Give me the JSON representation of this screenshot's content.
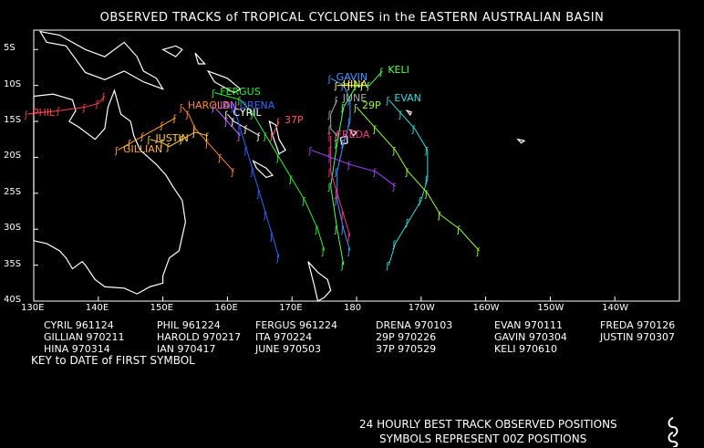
{
  "title": "OBSERVED TRACKS of TROPICAL CYCLONES in the EASTERN AUSTRALIAN BASIN",
  "lat_labels": [
    "5S",
    "10S",
    "15S",
    "20S",
    "25S",
    "30S",
    "35S",
    "40S"
  ],
  "lon_labels": [
    "130E",
    "140E",
    "150E",
    "160E",
    "170E",
    "180",
    "170W",
    "160W",
    "150W",
    "140W"
  ],
  "key": [
    {
      "name": "CYRIL",
      "date": "961124"
    },
    {
      "name": "PHIL",
      "date": "961224"
    },
    {
      "name": "FERGUS",
      "date": "961224"
    },
    {
      "name": "DRENA",
      "date": "970103"
    },
    {
      "name": "EVAN",
      "date": "970111"
    },
    {
      "name": "FREDA",
      "date": "970126"
    },
    {
      "name": "GILLIAN",
      "date": "970211"
    },
    {
      "name": "HAROLD",
      "date": "970217"
    },
    {
      "name": "ITA",
      "date": "970224"
    },
    {
      "name": "29P",
      "date": "970226"
    },
    {
      "name": "GAVIN",
      "date": "970304"
    },
    {
      "name": "JUSTIN",
      "date": "970307"
    },
    {
      "name": "HINA",
      "date": "970314"
    },
    {
      "name": "IAN",
      "date": "970417"
    },
    {
      "name": "JUNE",
      "date": "970503"
    },
    {
      "name": "37P",
      "date": "970529"
    },
    {
      "name": "KELI",
      "date": "970610"
    }
  ],
  "key_caption": "KEY to DATE of FIRST SYMBOL",
  "note1": "24 HOURLY BEST TRACK OBSERVED POSITIONS",
  "note2": "SYMBOLS REPRESENT 00Z POSITIONS",
  "storms": [
    {
      "name": "PHIL",
      "color": "#ff4444",
      "label": "PHIL",
      "track": [
        [
          129,
          14
        ],
        [
          134,
          13.5
        ],
        [
          138,
          13
        ],
        [
          140,
          12.5
        ],
        [
          141,
          11.5
        ]
      ]
    },
    {
      "name": "GILLIAN",
      "color": "#ffaa33",
      "label": "GILLIAN",
      "track": [
        [
          143,
          19
        ],
        [
          145,
          18
        ],
        [
          147,
          17
        ],
        [
          150,
          15.5
        ],
        [
          152,
          14.5
        ]
      ]
    },
    {
      "name": "HAROLD",
      "color": "#ff8833",
      "label": "HAROLD",
      "track": [
        [
          153,
          13
        ],
        [
          154,
          14
        ],
        [
          155,
          16
        ],
        [
          157,
          18
        ],
        [
          159,
          20
        ],
        [
          161,
          22
        ]
      ]
    },
    {
      "name": "JUSTIN",
      "color": "#ffcc44",
      "label": "JUSTIN",
      "track": [
        [
          148,
          17.5
        ],
        [
          150,
          18
        ],
        [
          151,
          18.5
        ],
        [
          153,
          17.5
        ],
        [
          155,
          16.5
        ],
        [
          157,
          17
        ]
      ]
    },
    {
      "name": "CYRIL",
      "color": "#ffffff",
      "label": "CYRIL",
      "track": [
        [
          160,
          14
        ],
        [
          161,
          15
        ],
        [
          163,
          16
        ],
        [
          165,
          17
        ]
      ]
    },
    {
      "name": "IAN",
      "color": "#cc66ff",
      "label": "IAN",
      "track": [
        [
          158,
          13
        ],
        [
          160,
          15
        ],
        [
          162,
          17
        ]
      ]
    },
    {
      "name": "FERGUS",
      "color": "#33ee33",
      "label": "FERGUS",
      "track": [
        [
          158,
          11
        ],
        [
          162,
          12
        ],
        [
          164,
          14
        ],
        [
          166,
          17
        ],
        [
          168,
          20
        ],
        [
          170,
          23
        ],
        [
          172,
          26
        ],
        [
          174,
          30
        ],
        [
          175,
          33
        ]
      ]
    },
    {
      "name": "DRENA",
      "color": "#3366ff",
      "label": "DRENA",
      "track": [
        [
          161,
          13
        ],
        [
          162,
          16
        ],
        [
          163,
          19
        ],
        [
          164,
          22
        ],
        [
          165,
          25
        ],
        [
          166,
          28
        ],
        [
          167,
          31
        ],
        [
          168,
          34
        ]
      ]
    },
    {
      "name": "37P",
      "color": "#ff5555",
      "label": "37P",
      "track": [
        [
          168,
          15
        ],
        [
          167,
          17
        ]
      ]
    },
    {
      "name": "JUNE",
      "color": "#aaaaaa",
      "label": "JUNE",
      "track": [
        [
          177,
          12
        ],
        [
          176,
          14
        ],
        [
          176,
          16
        ],
        [
          177,
          17
        ]
      ]
    },
    {
      "name": "GAVIN",
      "color": "#4499ff",
      "label": "GAVIN",
      "track": [
        [
          176,
          9
        ],
        [
          178,
          10
        ],
        [
          179,
          12
        ],
        [
          179,
          15
        ],
        [
          178,
          18
        ],
        [
          177,
          22
        ],
        [
          177,
          26
        ],
        [
          178,
          30
        ],
        [
          179,
          33
        ]
      ]
    },
    {
      "name": "HINA",
      "color": "#ffff55",
      "label": "HINA",
      "track": [
        [
          177,
          10
        ],
        [
          179,
          10
        ],
        [
          181,
          10
        ]
      ]
    },
    {
      "name": "KELI",
      "color": "#55ff55",
      "label": "KELI",
      "track": [
        [
          184,
          8
        ],
        [
          182,
          10
        ],
        [
          180,
          10
        ],
        [
          178,
          13
        ],
        [
          177,
          18
        ],
        [
          176,
          24
        ],
        [
          177,
          30
        ],
        [
          178,
          35
        ]
      ]
    },
    {
      "name": "FREDA",
      "color": "#ff3388",
      "label": "FREDA",
      "track": [
        [
          176,
          17
        ],
        [
          176,
          19
        ],
        [
          176,
          22
        ],
        [
          177,
          25
        ],
        [
          178,
          28
        ],
        [
          179,
          31
        ]
      ]
    },
    {
      "name": "EVAN",
      "color": "#33dddd",
      "label": "EVAN",
      "track": [
        [
          185,
          12
        ],
        [
          187,
          14
        ],
        [
          189,
          16
        ],
        [
          191,
          19
        ],
        [
          191,
          23
        ],
        [
          190,
          26
        ],
        [
          188,
          29
        ],
        [
          186,
          32
        ],
        [
          185,
          35
        ]
      ]
    },
    {
      "name": "ITA",
      "color": "#aa44ff",
      "label": "",
      "track": [
        [
          173,
          19
        ],
        [
          176,
          20
        ],
        [
          179,
          21
        ],
        [
          183,
          22
        ],
        [
          186,
          24
        ]
      ]
    },
    {
      "name": "29P",
      "color": "#99ff33",
      "label": "29P",
      "track": [
        [
          180,
          13
        ],
        [
          183,
          16
        ],
        [
          186,
          19
        ],
        [
          188,
          22
        ],
        [
          191,
          25
        ],
        [
          193,
          28
        ],
        [
          196,
          30
        ],
        [
          199,
          33
        ]
      ]
    }
  ]
}
